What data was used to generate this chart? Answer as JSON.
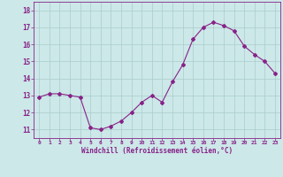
{
  "x": [
    0,
    1,
    2,
    3,
    4,
    5,
    6,
    7,
    8,
    9,
    10,
    11,
    12,
    13,
    14,
    15,
    16,
    17,
    18,
    19,
    20,
    21,
    22,
    23
  ],
  "y": [
    12.9,
    13.1,
    13.1,
    13.0,
    12.9,
    11.1,
    11.0,
    11.2,
    11.5,
    12.0,
    12.6,
    13.0,
    12.6,
    13.8,
    14.8,
    16.3,
    17.0,
    17.3,
    17.1,
    16.8,
    15.9,
    15.4,
    15.0,
    14.3
  ],
  "line_color": "#882288",
  "marker": "D",
  "marker_size": 2.0,
  "bg_color": "#cce8e8",
  "grid_color": "#aacccc",
  "xlabel": "Windchill (Refroidissement éolien,°C)",
  "ylim": [
    10.5,
    18.5
  ],
  "yticks": [
    11,
    12,
    13,
    14,
    15,
    16,
    17,
    18
  ],
  "xlim": [
    -0.5,
    23.5
  ],
  "xtick_labels": [
    "0",
    "1",
    "2",
    "3",
    "4",
    "5",
    "6",
    "7",
    "8",
    "9",
    "10",
    "11",
    "12",
    "13",
    "14",
    "15",
    "16",
    "17",
    "18",
    "19",
    "20",
    "21",
    "22",
    "23"
  ]
}
